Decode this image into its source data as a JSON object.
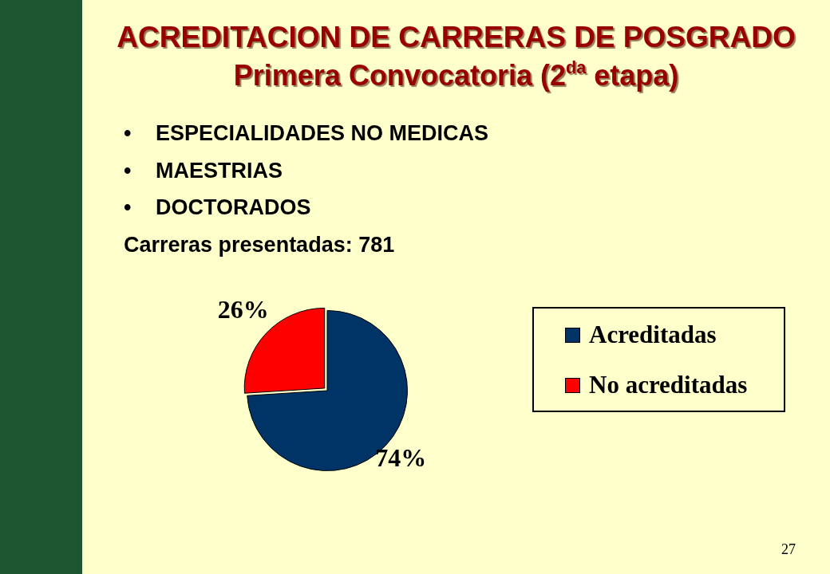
{
  "chart_data": {
    "type": "pie",
    "title": "ACREDITACION DE CARRERAS DE POSGRADO",
    "subtitle": "Primera Convocatoria (2$^{da}$ etapa)",
    "categories": [
      "Acreditadas",
      "No acreditadas"
    ],
    "values": [
      74,
      26
    ],
    "colors": [
      "#003366",
      "#ff0000"
    ],
    "value_labels": [
      "74%",
      "26%"
    ],
    "legend": "right",
    "annotations": [
      "•\tESPECIALIDADES NO MEDICAS",
      "•\tMAESTRIAS",
      "•\tDOCTORADOS",
      "Carreras presentadas: 781",
      "27"
    ]
  }
}
